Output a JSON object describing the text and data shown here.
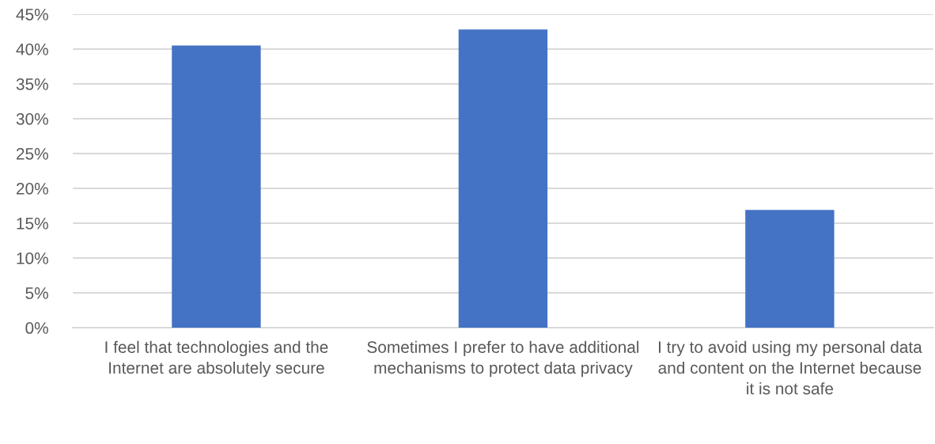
{
  "chart_data": {
    "type": "bar",
    "categories": [
      "I feel that technologies and the Internet are absolutely secure",
      "Sometimes I prefer to have additional mechanisms to protect data privacy",
      "I try to avoid using my personal data and content on the Internet because it is not safe"
    ],
    "values": [
      40.5,
      42.8,
      16.9
    ],
    "color": "#4472c4",
    "ylim": [
      0,
      45
    ],
    "yticks": [
      {
        "value": 0,
        "label": "0%"
      },
      {
        "value": 5,
        "label": "5%"
      },
      {
        "value": 10,
        "label": "10%"
      },
      {
        "value": 15,
        "label": "15%"
      },
      {
        "value": 20,
        "label": "20%"
      },
      {
        "value": 25,
        "label": "25%"
      },
      {
        "value": 30,
        "label": "30%"
      },
      {
        "value": 35,
        "label": "35%"
      },
      {
        "value": 40,
        "label": "40%"
      },
      {
        "value": 45,
        "label": "45%"
      }
    ],
    "grid": "y"
  }
}
